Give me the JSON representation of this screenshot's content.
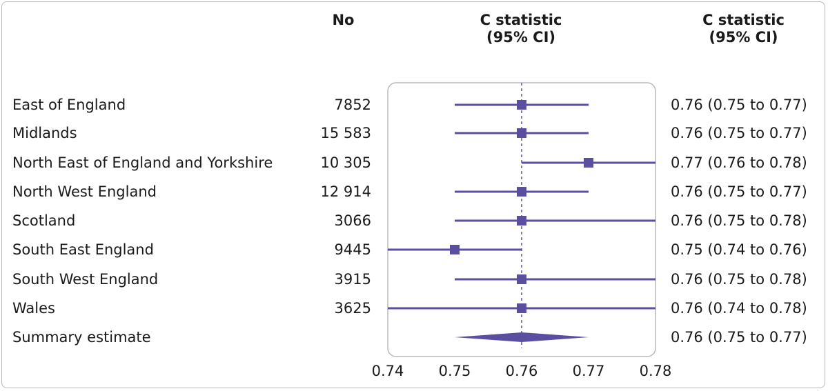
{
  "headers": {
    "no": "No",
    "cstat_plot_line1": "C statistic",
    "cstat_plot_line2": "(95% CI)",
    "cstat_text_line1": "C statistic",
    "cstat_text_line2": "(95% CI)"
  },
  "colors": {
    "marker": "#5a4ea0",
    "ref_line": "#5a4ea0",
    "plot_border": "#b9b9b9"
  },
  "chart_data": {
    "type": "forest",
    "xlim": [
      0.74,
      0.78
    ],
    "xticks": [
      "0.74",
      "0.75",
      "0.76",
      "0.77",
      "0.78"
    ],
    "reference_line": 0.76,
    "rows": [
      {
        "region": "East of England",
        "n": "7852",
        "estimate": 0.76,
        "lower": 0.75,
        "upper": 0.77,
        "label": "0.76 (0.75 to 0.77)"
      },
      {
        "region": "Midlands",
        "n": "15 583",
        "estimate": 0.76,
        "lower": 0.75,
        "upper": 0.77,
        "label": "0.76 (0.75 to 0.77)"
      },
      {
        "region": "North East of England and Yorkshire",
        "n": "10 305",
        "estimate": 0.77,
        "lower": 0.76,
        "upper": 0.78,
        "label": "0.77 (0.76 to 0.78)"
      },
      {
        "region": "North West England",
        "n": "12 914",
        "estimate": 0.76,
        "lower": 0.75,
        "upper": 0.77,
        "label": "0.76 (0.75 to 0.77)"
      },
      {
        "region": "Scotland",
        "n": "3066",
        "estimate": 0.76,
        "lower": 0.75,
        "upper": 0.78,
        "label": "0.76 (0.75 to 0.78)"
      },
      {
        "region": "South East England",
        "n": "9445",
        "estimate": 0.75,
        "lower": 0.74,
        "upper": 0.76,
        "label": "0.75 (0.74 to 0.76)"
      },
      {
        "region": "South West England",
        "n": "3915",
        "estimate": 0.76,
        "lower": 0.75,
        "upper": 0.78,
        "label": "0.76 (0.75 to 0.78)"
      },
      {
        "region": "Wales",
        "n": "3625",
        "estimate": 0.76,
        "lower": 0.74,
        "upper": 0.78,
        "label": "0.76 (0.74 to 0.78)"
      }
    ],
    "summary": {
      "region": "Summary estimate",
      "estimate": 0.76,
      "lower": 0.75,
      "upper": 0.77,
      "label": "0.76 (0.75 to 0.77)"
    }
  }
}
